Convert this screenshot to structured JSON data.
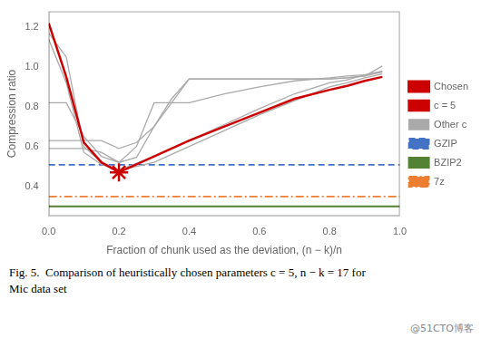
{
  "chart_data": {
    "type": "line",
    "xlabel": "Fraction of chunk used as the deviation, (n − k)/n",
    "ylabel": "Compression ratio",
    "annotations": [
      "Fig. 5.  Comparison of heuristically chosen parameters c = 5, n − k = 17 for",
      "Mic data set",
      "@51CTO博客"
    ],
    "xlim": [
      0.0,
      1.0
    ],
    "ylim": [
      0.25,
      1.28
    ],
    "xticks": [
      {
        "value": 0.0,
        "label": "0.0"
      },
      0.2,
      0.4,
      0.6,
      0.8,
      {
        "value": 1.0,
        "label": "1.0"
      }
    ],
    "yticks": [
      0.4,
      0.6,
      0.8,
      {
        "value": 1.0,
        "label": "1.0"
      },
      1.2
    ],
    "grid": false,
    "legend": "right",
    "series": [
      {
        "name": "c = 5",
        "color": "#cc0000",
        "line_style": "solid",
        "x": [
          0.0,
          0.05,
          0.1,
          0.15,
          0.2,
          0.3,
          0.4,
          0.5,
          0.6,
          0.7,
          0.8,
          0.85,
          0.9,
          0.95
        ],
        "values": [
          1.22,
          0.95,
          0.62,
          0.52,
          0.47,
          0.55,
          0.63,
          0.7,
          0.77,
          0.84,
          0.885,
          0.905,
          0.93,
          0.95
        ]
      },
      {
        "name": "Chosen",
        "type": "scatter",
        "marker": "star",
        "color": "#cc0000",
        "x": [
          0.2
        ],
        "values": [
          0.47
        ]
      },
      {
        "name": "Other c",
        "color": "#aaaaaa",
        "line_style": "solid",
        "x": [
          0.0,
          0.05,
          0.1,
          0.15,
          0.2,
          0.3,
          0.4,
          0.5,
          0.6,
          0.7,
          0.8,
          0.85,
          0.9,
          0.95
        ],
        "values": [
          1.17,
          1.05,
          0.6,
          0.52,
          0.48,
          0.52,
          0.6,
          0.68,
          0.76,
          0.83,
          0.9,
          0.92,
          0.945,
          0.965
        ]
      },
      {
        "name": "Other c",
        "color": "#aaaaaa",
        "line_style": "solid",
        "x": [
          0.0,
          0.05,
          0.1,
          0.15,
          0.2,
          0.3,
          0.4,
          0.5,
          0.6,
          0.7,
          0.8,
          0.85,
          0.9,
          0.95
        ],
        "values": [
          1.14,
          0.92,
          0.57,
          0.51,
          0.48,
          0.55,
          0.63,
          0.71,
          0.79,
          0.865,
          0.92,
          0.935,
          0.96,
          0.98
        ]
      },
      {
        "name": "Other c",
        "color": "#aaaaaa",
        "line_style": "solid",
        "x": [
          0.0,
          0.05,
          0.1,
          0.15,
          0.2,
          0.25,
          0.3,
          0.35,
          0.4,
          0.5,
          0.6,
          0.7,
          0.8,
          0.85,
          0.9,
          0.95
        ],
        "values": [
          0.82,
          0.82,
          0.65,
          0.55,
          0.52,
          0.6,
          0.82,
          0.82,
          0.82,
          0.865,
          0.9,
          0.93,
          0.945,
          0.955,
          0.96,
          0.975
        ]
      },
      {
        "name": "Other c",
        "color": "#aaaaaa",
        "line_style": "solid",
        "x": [
          0.0,
          0.05,
          0.1,
          0.15,
          0.2,
          0.25,
          0.3,
          0.35,
          0.4,
          0.45,
          0.5,
          0.6,
          0.7,
          0.8,
          0.85,
          0.9,
          0.95
        ],
        "values": [
          0.59,
          0.59,
          0.59,
          0.57,
          0.52,
          0.545,
          0.7,
          0.82,
          0.94,
          0.94,
          0.94,
          0.94,
          0.94,
          0.94,
          0.945,
          0.955,
          0.975
        ]
      },
      {
        "name": "Other c",
        "color": "#aaaaaa",
        "line_style": "solid",
        "x": [
          0.0,
          0.05,
          0.1,
          0.15,
          0.2,
          0.25,
          0.3,
          0.35,
          0.4,
          0.45,
          0.5,
          0.6,
          0.7,
          0.8,
          0.85,
          0.9,
          0.95
        ],
        "values": [
          0.63,
          0.63,
          0.63,
          0.63,
          0.59,
          0.62,
          0.7,
          0.84,
          0.94,
          0.94,
          0.94,
          0.94,
          0.94,
          0.94,
          0.945,
          0.955,
          1.005
        ]
      },
      {
        "name": "GZIP",
        "type": "hline",
        "color": "#4472c4",
        "line_style": "dashed",
        "values": [
          0.508
        ]
      },
      {
        "name": "BZIP2",
        "type": "hline",
        "color": "#548235",
        "line_style": "solid",
        "values": [
          0.298
        ]
      },
      {
        "name": "7z",
        "type": "hline",
        "color": "#ed7d31",
        "line_style": "dashdot",
        "values": [
          0.348
        ]
      }
    ]
  }
}
